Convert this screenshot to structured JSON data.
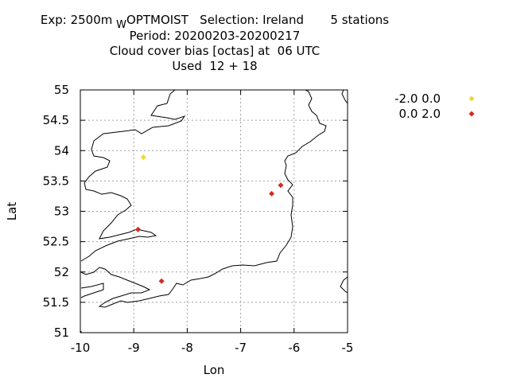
{
  "chart_data": {
    "type": "scatter",
    "title_lines": [
      {
        "exp_prefix": "Exp: 2500m",
        "exp_sub": "W",
        "exp_rest": "OPTMOIST   Selection: Ireland       5 stations"
      },
      {
        "text": "Period: 20200203-20200217"
      },
      {
        "text": "Cloud cover bias [octas] at  06 UTC"
      },
      {
        "text": "Used  12 + 18"
      }
    ],
    "xlabel": "Lon",
    "ylabel": "Lat",
    "xlim": [
      -10,
      -5
    ],
    "ylim": [
      51,
      55
    ],
    "xticks": [
      -10,
      -9,
      -8,
      -7,
      -6,
      -5
    ],
    "yticks": [
      51,
      51.5,
      52,
      52.5,
      53,
      53.5,
      54,
      54.5,
      55
    ],
    "grid": true,
    "legend_position": "right",
    "legend": [
      {
        "label": "-2.0 0.0",
        "color": "#f0d830"
      },
      {
        "label": "0.0 2.0",
        "color": "#d62a1e"
      }
    ],
    "series": [
      {
        "bin": "-2.0 0.0",
        "color": "#f0d830",
        "points": [
          {
            "x": -8.82,
            "y": 53.89
          }
        ]
      },
      {
        "bin": "0.0 2.0",
        "color": "#d62a1e",
        "points": [
          {
            "x": -6.25,
            "y": 53.43
          },
          {
            "x": -6.42,
            "y": 53.29
          },
          {
            "x": -8.92,
            "y": 52.7
          },
          {
            "x": -8.48,
            "y": 51.85
          }
        ]
      }
    ]
  }
}
